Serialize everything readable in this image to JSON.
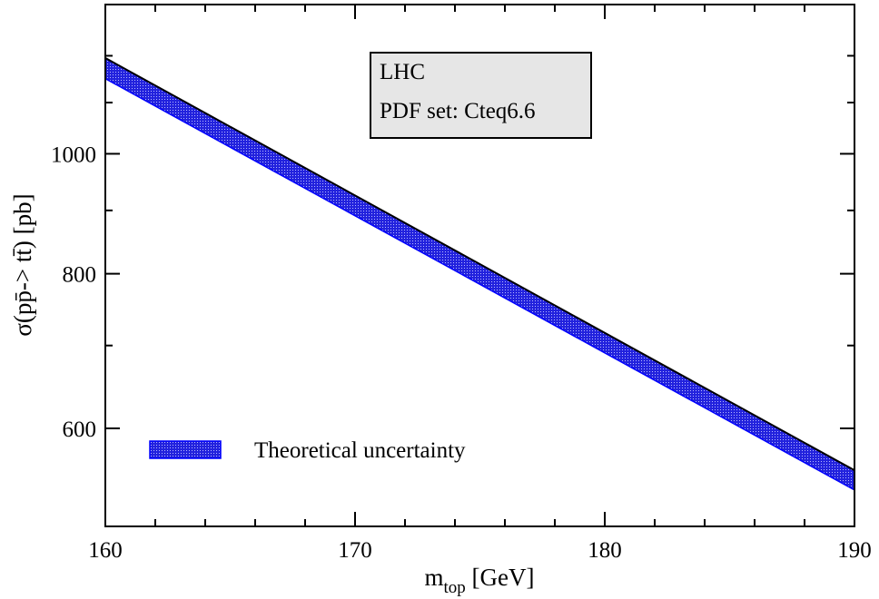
{
  "chart_data": {
    "type": "area",
    "xlabel": "m",
    "xlabel_sub": "top",
    "xlabel_unit": " [GeV]",
    "ylabel": "σ(pp̄-> tt̄) [pb]",
    "xlim": [
      160,
      190
    ],
    "ylim": [
      500,
      1320
    ],
    "y_scale": "log",
    "x_ticks": [
      160,
      170,
      180,
      190
    ],
    "x_tick_labels": [
      "160",
      "170",
      "180",
      "190"
    ],
    "x_minor_ticks": [
      162,
      164,
      166,
      168,
      172,
      174,
      176,
      178,
      182,
      184,
      186,
      188
    ],
    "y_ticks": [
      600,
      800,
      1000
    ],
    "y_tick_labels": [
      "600",
      "800",
      "1000"
    ],
    "y_minor_ticks": [
      700,
      900,
      1100,
      1200
    ],
    "series": [
      {
        "name": "Theoretical uncertainty",
        "x": [
          160,
          190
        ],
        "upper": [
          1195,
          555
        ],
        "lower": [
          1150,
          535
        ],
        "fill": "#3333ee",
        "edge": "#0000ff"
      }
    ],
    "annotation": {
      "lines": [
        "LHC",
        "PDF set: Cteq6.6"
      ]
    },
    "legend": {
      "position": "bottom-left",
      "label": "Theoretical uncertainty"
    }
  }
}
